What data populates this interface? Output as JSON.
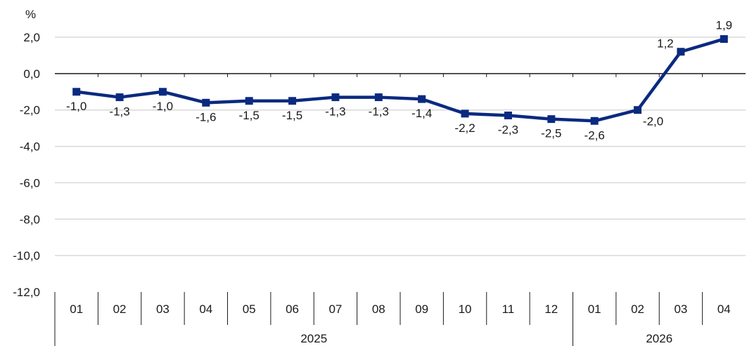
{
  "chart_data": {
    "type": "line",
    "ylabel": "%",
    "ylim": [
      -12,
      2
    ],
    "y_ticks": [
      "2,0",
      "0,0",
      "-2,0",
      "-4,0",
      "-6,0",
      "-8,0",
      "-10,0",
      "-12,0"
    ],
    "y_tick_values": [
      2,
      0,
      -2,
      -4,
      -6,
      -8,
      -10,
      -12
    ],
    "grid": true,
    "categories": [
      "01",
      "02",
      "03",
      "04",
      "05",
      "06",
      "07",
      "08",
      "09",
      "10",
      "11",
      "12",
      "01",
      "02",
      "03",
      "04"
    ],
    "category_groups": [
      {
        "label": "2025",
        "count": 12
      },
      {
        "label": "2026",
        "count": 4
      }
    ],
    "series": [
      {
        "values": [
          -1.0,
          -1.3,
          -1.0,
          -1.6,
          -1.5,
          -1.5,
          -1.3,
          -1.3,
          -1.4,
          -2.2,
          -2.3,
          -2.5,
          -2.6,
          -2.0,
          1.2,
          1.9
        ],
        "labels": [
          "-1,0",
          "-1,3",
          "-1,0",
          "-1,6",
          "-1,5",
          "-1,5",
          "-1,3",
          "-1,3",
          "-1,4",
          "-2,2",
          "-2,3",
          "-2,5",
          "-2,6",
          "-2,0",
          "1,2",
          "1,9"
        ],
        "color": "#0a2a80"
      }
    ],
    "colors": {
      "line": "#0a2a80",
      "grid": "#d9d9d9",
      "axis": "#1a1a1a"
    }
  }
}
